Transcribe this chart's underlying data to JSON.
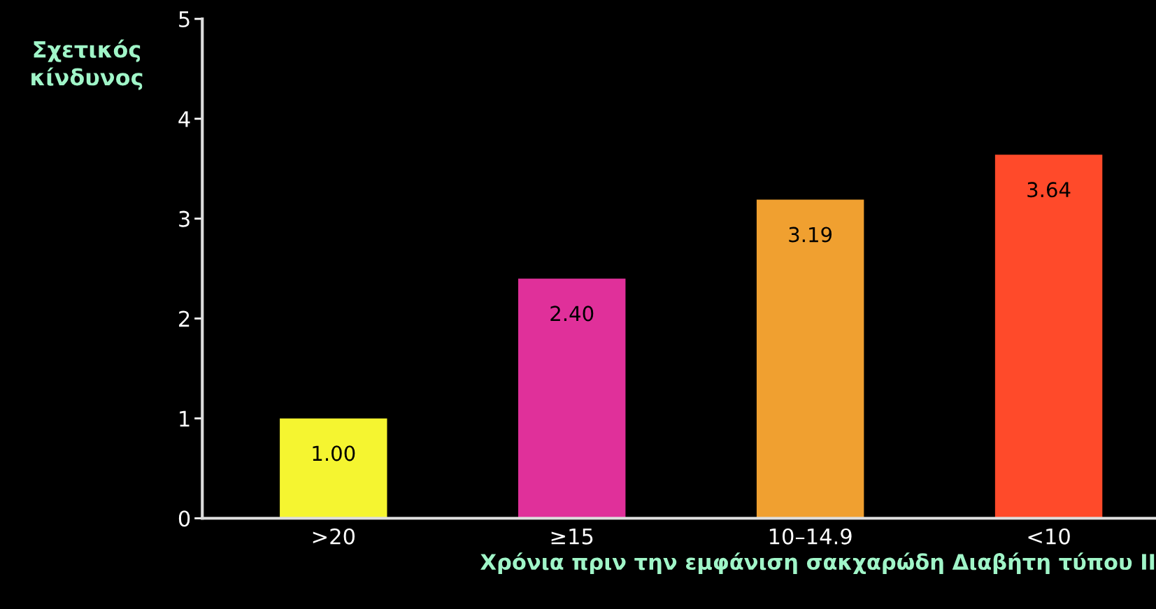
{
  "chart_data": {
    "type": "bar",
    "ylabel": "Σχετικός\nκίνδυνος",
    "xlabel": "Χρόνια πριν την εμφάνιση σακχαρώδη Διαβήτη τύπου II",
    "categories": [
      ">20",
      "≥15",
      "10–14.9",
      "<10"
    ],
    "values": [
      1.0,
      2.4,
      3.19,
      3.64
    ],
    "colors": [
      "#f5f530",
      "#e0309a",
      "#f0a030",
      "#ff4a2a"
    ],
    "value_labels": [
      "1.00",
      "2.40",
      "3.19",
      "3.64"
    ],
    "ylim": [
      0,
      5
    ],
    "yticks": [
      0,
      1,
      2,
      3,
      4,
      5
    ],
    "grid": false,
    "legend": false
  }
}
